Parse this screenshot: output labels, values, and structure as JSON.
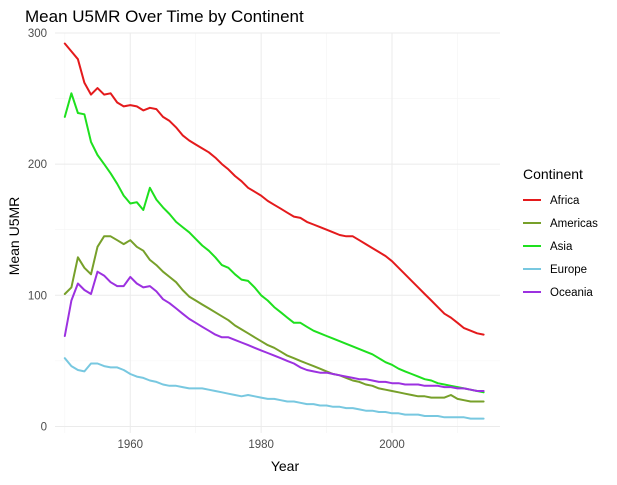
{
  "chart_data": {
    "type": "line",
    "title": "Mean U5MR Over Time by Continent",
    "xlabel": "Year",
    "ylabel": "Mean U5MR",
    "xlim": [
      1948.5,
      2016.5
    ],
    "ylim": [
      -5,
      300
    ],
    "x_ticks": [
      1960,
      1980,
      2000
    ],
    "y_ticks": [
      0,
      100,
      200,
      300
    ],
    "grid": true,
    "legend": {
      "title": "Continent",
      "position": "right"
    },
    "series": [
      {
        "name": "Africa",
        "color": "#e41a1c",
        "points": [
          [
            1950,
            292
          ],
          [
            1951,
            286
          ],
          [
            1952,
            280
          ],
          [
            1953,
            262
          ],
          [
            1954,
            253
          ],
          [
            1955,
            258
          ],
          [
            1956,
            253
          ],
          [
            1957,
            254
          ],
          [
            1958,
            247
          ],
          [
            1959,
            244
          ],
          [
            1960,
            245
          ],
          [
            1961,
            244
          ],
          [
            1962,
            241
          ],
          [
            1963,
            243
          ],
          [
            1964,
            242
          ],
          [
            1965,
            236
          ],
          [
            1966,
            233
          ],
          [
            1967,
            228
          ],
          [
            1968,
            222
          ],
          [
            1969,
            218
          ],
          [
            1970,
            215
          ],
          [
            1971,
            212
          ],
          [
            1972,
            209
          ],
          [
            1973,
            205
          ],
          [
            1974,
            200
          ],
          [
            1975,
            196
          ],
          [
            1976,
            191
          ],
          [
            1977,
            187
          ],
          [
            1978,
            182
          ],
          [
            1979,
            179
          ],
          [
            1980,
            176
          ],
          [
            1981,
            172
          ],
          [
            1982,
            169
          ],
          [
            1983,
            166
          ],
          [
            1984,
            163
          ],
          [
            1985,
            160
          ],
          [
            1986,
            159
          ],
          [
            1987,
            156
          ],
          [
            1988,
            154
          ],
          [
            1989,
            152
          ],
          [
            1990,
            150
          ],
          [
            1991,
            148
          ],
          [
            1992,
            146
          ],
          [
            1993,
            145
          ],
          [
            1994,
            145
          ],
          [
            1995,
            142
          ],
          [
            1996,
            139
          ],
          [
            1997,
            136
          ],
          [
            1998,
            133
          ],
          [
            1999,
            130
          ],
          [
            2000,
            126
          ],
          [
            2001,
            121
          ],
          [
            2002,
            116
          ],
          [
            2003,
            111
          ],
          [
            2004,
            106
          ],
          [
            2005,
            101
          ],
          [
            2006,
            96
          ],
          [
            2007,
            91
          ],
          [
            2008,
            86
          ],
          [
            2009,
            83
          ],
          [
            2010,
            79
          ],
          [
            2011,
            75
          ],
          [
            2012,
            73
          ],
          [
            2013,
            71
          ],
          [
            2014,
            70
          ]
        ]
      },
      {
        "name": "Americas",
        "color": "#77a02a",
        "points": [
          [
            1950,
            101
          ],
          [
            1951,
            106
          ],
          [
            1952,
            129
          ],
          [
            1953,
            121
          ],
          [
            1954,
            116
          ],
          [
            1955,
            137
          ],
          [
            1956,
            145
          ],
          [
            1957,
            145
          ],
          [
            1958,
            142
          ],
          [
            1959,
            139
          ],
          [
            1960,
            142
          ],
          [
            1961,
            137
          ],
          [
            1962,
            134
          ],
          [
            1963,
            127
          ],
          [
            1964,
            123
          ],
          [
            1965,
            118
          ],
          [
            1966,
            114
          ],
          [
            1967,
            110
          ],
          [
            1968,
            104
          ],
          [
            1969,
            99
          ],
          [
            1970,
            96
          ],
          [
            1971,
            93
          ],
          [
            1972,
            90
          ],
          [
            1973,
            87
          ],
          [
            1974,
            84
          ],
          [
            1975,
            81
          ],
          [
            1976,
            77
          ],
          [
            1977,
            74
          ],
          [
            1978,
            71
          ],
          [
            1979,
            68
          ],
          [
            1980,
            65
          ],
          [
            1981,
            62
          ],
          [
            1982,
            60
          ],
          [
            1983,
            57
          ],
          [
            1984,
            54
          ],
          [
            1985,
            52
          ],
          [
            1986,
            50
          ],
          [
            1987,
            48
          ],
          [
            1988,
            46
          ],
          [
            1989,
            44
          ],
          [
            1990,
            42
          ],
          [
            1991,
            40
          ],
          [
            1992,
            39
          ],
          [
            1993,
            37
          ],
          [
            1994,
            35
          ],
          [
            1995,
            34
          ],
          [
            1996,
            32
          ],
          [
            1997,
            31
          ],
          [
            1998,
            29
          ],
          [
            1999,
            28
          ],
          [
            2000,
            27
          ],
          [
            2001,
            26
          ],
          [
            2002,
            25
          ],
          [
            2003,
            24
          ],
          [
            2004,
            23
          ],
          [
            2005,
            23
          ],
          [
            2006,
            22
          ],
          [
            2007,
            22
          ],
          [
            2008,
            22
          ],
          [
            2009,
            24
          ],
          [
            2010,
            21
          ],
          [
            2011,
            20
          ],
          [
            2012,
            19
          ],
          [
            2013,
            19
          ],
          [
            2014,
            19
          ]
        ]
      },
      {
        "name": "Asia",
        "color": "#1ee01e",
        "points": [
          [
            1950,
            236
          ],
          [
            1951,
            254
          ],
          [
            1952,
            239
          ],
          [
            1953,
            238
          ],
          [
            1954,
            217
          ],
          [
            1955,
            207
          ],
          [
            1956,
            200
          ],
          [
            1957,
            193
          ],
          [
            1958,
            185
          ],
          [
            1959,
            176
          ],
          [
            1960,
            170
          ],
          [
            1961,
            171
          ],
          [
            1962,
            165
          ],
          [
            1963,
            182
          ],
          [
            1964,
            173
          ],
          [
            1965,
            167
          ],
          [
            1966,
            162
          ],
          [
            1967,
            156
          ],
          [
            1968,
            152
          ],
          [
            1969,
            148
          ],
          [
            1970,
            143
          ],
          [
            1971,
            138
          ],
          [
            1972,
            134
          ],
          [
            1973,
            129
          ],
          [
            1974,
            123
          ],
          [
            1975,
            121
          ],
          [
            1976,
            116
          ],
          [
            1977,
            112
          ],
          [
            1978,
            111
          ],
          [
            1979,
            106
          ],
          [
            1980,
            100
          ],
          [
            1981,
            96
          ],
          [
            1982,
            91
          ],
          [
            1983,
            87
          ],
          [
            1984,
            83
          ],
          [
            1985,
            79
          ],
          [
            1986,
            79
          ],
          [
            1987,
            76
          ],
          [
            1988,
            73
          ],
          [
            1989,
            71
          ],
          [
            1990,
            69
          ],
          [
            1991,
            67
          ],
          [
            1992,
            65
          ],
          [
            1993,
            63
          ],
          [
            1994,
            61
          ],
          [
            1995,
            59
          ],
          [
            1996,
            57
          ],
          [
            1997,
            55
          ],
          [
            1998,
            52
          ],
          [
            1999,
            49
          ],
          [
            2000,
            47
          ],
          [
            2001,
            44
          ],
          [
            2002,
            42
          ],
          [
            2003,
            40
          ],
          [
            2004,
            38
          ],
          [
            2005,
            36
          ],
          [
            2006,
            35
          ],
          [
            2007,
            33
          ],
          [
            2008,
            32
          ],
          [
            2009,
            31
          ],
          [
            2010,
            30
          ],
          [
            2011,
            29
          ],
          [
            2012,
            28
          ],
          [
            2013,
            27
          ],
          [
            2014,
            26
          ]
        ]
      },
      {
        "name": "Europe",
        "color": "#78c8e0",
        "points": [
          [
            1950,
            52
          ],
          [
            1951,
            46
          ],
          [
            1952,
            43
          ],
          [
            1953,
            42
          ],
          [
            1954,
            48
          ],
          [
            1955,
            48
          ],
          [
            1956,
            46
          ],
          [
            1957,
            45
          ],
          [
            1958,
            45
          ],
          [
            1959,
            43
          ],
          [
            1960,
            40
          ],
          [
            1961,
            38
          ],
          [
            1962,
            37
          ],
          [
            1963,
            35
          ],
          [
            1964,
            34
          ],
          [
            1965,
            32
          ],
          [
            1966,
            31
          ],
          [
            1967,
            31
          ],
          [
            1968,
            30
          ],
          [
            1969,
            29
          ],
          [
            1970,
            29
          ],
          [
            1971,
            29
          ],
          [
            1972,
            28
          ],
          [
            1973,
            27
          ],
          [
            1974,
            26
          ],
          [
            1975,
            25
          ],
          [
            1976,
            24
          ],
          [
            1977,
            23
          ],
          [
            1978,
            24
          ],
          [
            1979,
            23
          ],
          [
            1980,
            22
          ],
          [
            1981,
            21
          ],
          [
            1982,
            21
          ],
          [
            1983,
            20
          ],
          [
            1984,
            19
          ],
          [
            1985,
            19
          ],
          [
            1986,
            18
          ],
          [
            1987,
            17
          ],
          [
            1988,
            17
          ],
          [
            1989,
            16
          ],
          [
            1990,
            16
          ],
          [
            1991,
            15
          ],
          [
            1992,
            15
          ],
          [
            1993,
            14
          ],
          [
            1994,
            14
          ],
          [
            1995,
            13
          ],
          [
            1996,
            12
          ],
          [
            1997,
            12
          ],
          [
            1998,
            11
          ],
          [
            1999,
            11
          ],
          [
            2000,
            10
          ],
          [
            2001,
            10
          ],
          [
            2002,
            9
          ],
          [
            2003,
            9
          ],
          [
            2004,
            9
          ],
          [
            2005,
            8
          ],
          [
            2006,
            8
          ],
          [
            2007,
            8
          ],
          [
            2008,
            7
          ],
          [
            2009,
            7
          ],
          [
            2010,
            7
          ],
          [
            2011,
            7
          ],
          [
            2012,
            6
          ],
          [
            2013,
            6
          ],
          [
            2014,
            6
          ]
        ]
      },
      {
        "name": "Oceania",
        "color": "#9c31e0",
        "points": [
          [
            1950,
            69
          ],
          [
            1951,
            96
          ],
          [
            1952,
            109
          ],
          [
            1953,
            104
          ],
          [
            1954,
            101
          ],
          [
            1955,
            118
          ],
          [
            1956,
            115
          ],
          [
            1957,
            110
          ],
          [
            1958,
            107
          ],
          [
            1959,
            107
          ],
          [
            1960,
            114
          ],
          [
            1961,
            109
          ],
          [
            1962,
            106
          ],
          [
            1963,
            107
          ],
          [
            1964,
            103
          ],
          [
            1965,
            97
          ],
          [
            1966,
            94
          ],
          [
            1967,
            90
          ],
          [
            1968,
            86
          ],
          [
            1969,
            82
          ],
          [
            1970,
            79
          ],
          [
            1971,
            76
          ],
          [
            1972,
            73
          ],
          [
            1973,
            70
          ],
          [
            1974,
            68
          ],
          [
            1975,
            68
          ],
          [
            1976,
            66
          ],
          [
            1977,
            64
          ],
          [
            1978,
            62
          ],
          [
            1979,
            60
          ],
          [
            1980,
            58
          ],
          [
            1981,
            56
          ],
          [
            1982,
            54
          ],
          [
            1983,
            52
          ],
          [
            1984,
            50
          ],
          [
            1985,
            48
          ],
          [
            1986,
            45
          ],
          [
            1987,
            43
          ],
          [
            1988,
            42
          ],
          [
            1989,
            41
          ],
          [
            1990,
            41
          ],
          [
            1991,
            40
          ],
          [
            1992,
            39
          ],
          [
            1993,
            38
          ],
          [
            1994,
            37
          ],
          [
            1995,
            36
          ],
          [
            1996,
            36
          ],
          [
            1997,
            35
          ],
          [
            1998,
            34
          ],
          [
            1999,
            34
          ],
          [
            2000,
            33
          ],
          [
            2001,
            33
          ],
          [
            2002,
            32
          ],
          [
            2003,
            32
          ],
          [
            2004,
            32
          ],
          [
            2005,
            31
          ],
          [
            2006,
            31
          ],
          [
            2007,
            31
          ],
          [
            2008,
            30
          ],
          [
            2009,
            30
          ],
          [
            2010,
            29
          ],
          [
            2011,
            29
          ],
          [
            2012,
            28
          ],
          [
            2013,
            27
          ],
          [
            2014,
            27
          ]
        ]
      }
    ]
  }
}
